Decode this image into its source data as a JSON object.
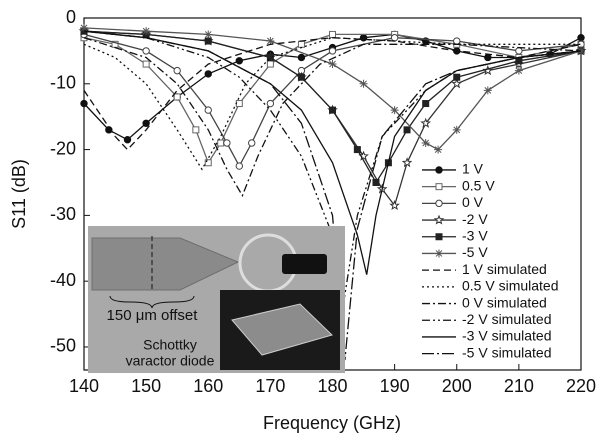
{
  "chart_data": {
    "type": "line",
    "xlabel": "Frequency (GHz)",
    "ylabel": "S11 (dB)",
    "xlim": [
      140,
      220
    ],
    "xticks": [
      140,
      150,
      160,
      170,
      180,
      190,
      200,
      210,
      220
    ],
    "ylim": [
      -53.5,
      0
    ],
    "yticks": [
      0,
      -10,
      -20,
      -30,
      -40,
      -50
    ],
    "legend": "lower right",
    "annotations": [
      "150 μm offset",
      "Schottky",
      "varactor diode"
    ],
    "series": [
      {
        "name": "1 V",
        "color": "#111111",
        "dash": "solid",
        "marker": "circle-filled",
        "x": [
          140,
          144,
          147,
          150,
          155,
          160,
          165,
          170,
          175,
          180,
          185,
          190,
          195,
          200,
          205,
          210,
          215,
          220
        ],
        "values": [
          -13,
          -17,
          -18.5,
          -16,
          -12,
          -8.5,
          -6.5,
          -5.5,
          -6,
          -4.5,
          -3,
          -2.5,
          -3.5,
          -5,
          -6,
          -6,
          -5.5,
          -3
        ]
      },
      {
        "name": "0.5 V",
        "color": "#666666",
        "dash": "solid",
        "marker": "square-open",
        "x": [
          140,
          145,
          150,
          155,
          158,
          160,
          162,
          165,
          170,
          175,
          180,
          190,
          200,
          210,
          220
        ],
        "values": [
          -3,
          -4,
          -7,
          -12,
          -17,
          -22,
          -19,
          -13,
          -7,
          -4,
          -2.5,
          -2.5,
          -4,
          -6,
          -4
        ]
      },
      {
        "name": "0 V",
        "color": "#444444",
        "dash": "solid",
        "marker": "circle-open",
        "x": [
          140,
          150,
          155,
          160,
          163,
          165,
          167,
          170,
          175,
          180,
          190,
          200,
          210,
          220
        ],
        "values": [
          -2.5,
          -5,
          -8,
          -14,
          -19,
          -22.5,
          -19,
          -13,
          -8,
          -5,
          -3,
          -3.5,
          -5,
          -4
        ]
      },
      {
        "name": "-2 V",
        "color": "#333333",
        "dash": "solid",
        "marker": "star-open",
        "x": [
          140,
          150,
          160,
          170,
          175,
          180,
          185,
          188,
          190,
          192,
          195,
          200,
          205,
          210,
          220
        ],
        "values": [
          -2,
          -2.5,
          -3.5,
          -6,
          -9,
          -14,
          -21,
          -26,
          -28.5,
          -22,
          -16,
          -10,
          -8,
          -7,
          -5
        ]
      },
      {
        "name": "-3 V",
        "color": "#222222",
        "dash": "solid",
        "marker": "square-filled",
        "x": [
          140,
          150,
          160,
          170,
          175,
          180,
          184,
          187,
          189,
          192,
          195,
          200,
          210,
          220
        ],
        "values": [
          -2,
          -2.5,
          -3.5,
          -6,
          -9,
          -14,
          -20,
          -25,
          -22,
          -17,
          -13,
          -9,
          -6.5,
          -5
        ]
      },
      {
        "name": "-5 V",
        "color": "#555555",
        "dash": "solid",
        "marker": "asterisk",
        "x": [
          140,
          150,
          160,
          170,
          180,
          185,
          190,
          195,
          197,
          200,
          205,
          210,
          220
        ],
        "values": [
          -1.5,
          -2,
          -2.5,
          -3.5,
          -7,
          -10,
          -14,
          -19,
          -20,
          -17,
          -11,
          -8,
          -5
        ]
      },
      {
        "name": "1 V simulated",
        "color": "#111111",
        "dash": "dashed",
        "marker": "none",
        "x": [
          140,
          145,
          147,
          150,
          155,
          160,
          170,
          180,
          190,
          200,
          210,
          220
        ],
        "values": [
          -11,
          -18,
          -20,
          -17,
          -11,
          -7,
          -4,
          -3,
          -3.5,
          -5,
          -6,
          -4
        ]
      },
      {
        "name": "0.5 V simulated",
        "color": "#111111",
        "dash": "dotted",
        "marker": "none",
        "x": [
          140,
          145,
          150,
          155,
          159,
          162,
          166,
          170,
          180,
          200,
          220
        ],
        "values": [
          -4,
          -6,
          -10,
          -17,
          -23,
          -18,
          -10,
          -6,
          -3,
          -4,
          -4
        ]
      },
      {
        "name": "0 V simulated",
        "color": "#111111",
        "dash": "dashdot",
        "marker": "none",
        "x": [
          140,
          150,
          155,
          160,
          163,
          165.5,
          168,
          172,
          178,
          185,
          200,
          220
        ],
        "values": [
          -3,
          -6,
          -10,
          -17,
          -23,
          -27,
          -21,
          -13,
          -7,
          -4,
          -4,
          -5
        ]
      },
      {
        "name": "-2 V simulated",
        "color": "#111111",
        "dash": "dashdotdot",
        "marker": "none",
        "x": [
          140,
          150,
          160,
          165,
          170,
          175,
          180,
          181.5,
          184,
          188,
          195,
          200,
          210,
          220
        ],
        "values": [
          -2,
          -3,
          -6,
          -9,
          -14,
          -21,
          -33,
          -45,
          -30,
          -18,
          -11,
          -8,
          -6,
          -5
        ]
      },
      {
        "name": "-3 V simulated",
        "color": "#111111",
        "dash": "solid",
        "marker": "none",
        "x": [
          140,
          150,
          160,
          170,
          175,
          180,
          184,
          185.5,
          187,
          190,
          195,
          200,
          210,
          220
        ],
        "values": [
          -2,
          -3,
          -5,
          -10,
          -14,
          -22,
          -33,
          -39,
          -30,
          -18,
          -11,
          -8,
          -6,
          -5
        ]
      },
      {
        "name": "-5 V simulated",
        "color": "#111111",
        "dash": "longdashdot",
        "marker": "none",
        "x": [
          140,
          150,
          160,
          170,
          175,
          180,
          182,
          184,
          188,
          195,
          200,
          210,
          220
        ],
        "values": [
          -2,
          -3,
          -5,
          -10,
          -16,
          -30,
          -52,
          -32,
          -18,
          -10,
          -8,
          -6,
          -5
        ]
      }
    ]
  }
}
